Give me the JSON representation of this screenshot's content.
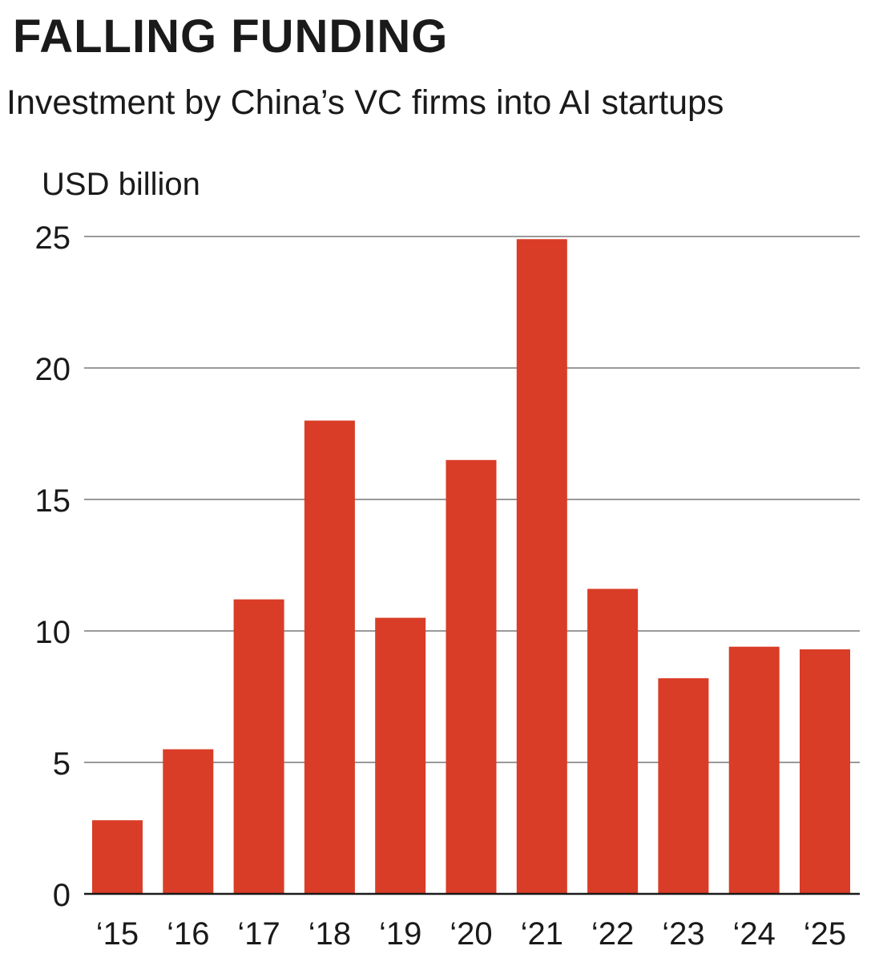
{
  "chart_data": {
    "type": "bar",
    "title": "FALLING FUNDING",
    "subtitle": "Investment by China’s VC firms into AI startups",
    "ylabel": "USD billion",
    "xlabel": "",
    "categories": [
      "‘15",
      "‘16",
      "‘17",
      "‘18",
      "‘19",
      "‘20",
      "‘21",
      "‘22",
      "‘23",
      "‘24",
      "‘25"
    ],
    "values": [
      2.8,
      5.5,
      11.2,
      18.0,
      10.5,
      16.5,
      24.9,
      11.6,
      8.2,
      9.4,
      9.3
    ],
    "ylim": [
      0,
      25
    ],
    "yticks": [
      0,
      5,
      10,
      15,
      20,
      25
    ],
    "grid": true,
    "colors": {
      "bar": "#d93d27",
      "grid": "#999999",
      "axis": "#1a1a1a"
    }
  }
}
